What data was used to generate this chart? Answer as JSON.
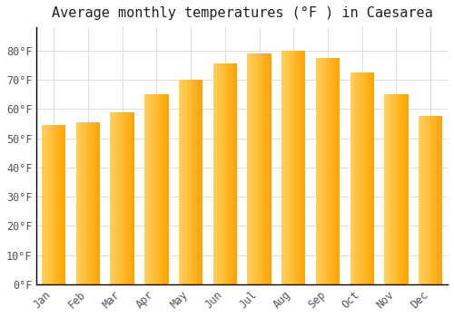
{
  "title": "Average monthly temperatures (°F ) in Caesarea",
  "months": [
    "Jan",
    "Feb",
    "Mar",
    "Apr",
    "May",
    "Jun",
    "Jul",
    "Aug",
    "Sep",
    "Oct",
    "Nov",
    "Dec"
  ],
  "values": [
    54.5,
    55.5,
    59.0,
    65.0,
    70.0,
    75.5,
    79.0,
    80.0,
    77.5,
    72.5,
    65.0,
    57.5
  ],
  "bar_color_main": "#FFA500",
  "bar_color_light": "#FFD060",
  "ylim": [
    0,
    88
  ],
  "yticks": [
    0,
    10,
    20,
    30,
    40,
    50,
    60,
    70,
    80
  ],
  "ytick_labels": [
    "0°F",
    "10°F",
    "20°F",
    "30°F",
    "40°F",
    "50°F",
    "60°F",
    "70°F",
    "80°F"
  ],
  "background_color": "#FFFFFF",
  "grid_color": "#DDDDDD",
  "axis_color": "#000000",
  "tick_color": "#555555",
  "title_color": "#222222",
  "title_fontsize": 11,
  "tick_fontsize": 8.5
}
